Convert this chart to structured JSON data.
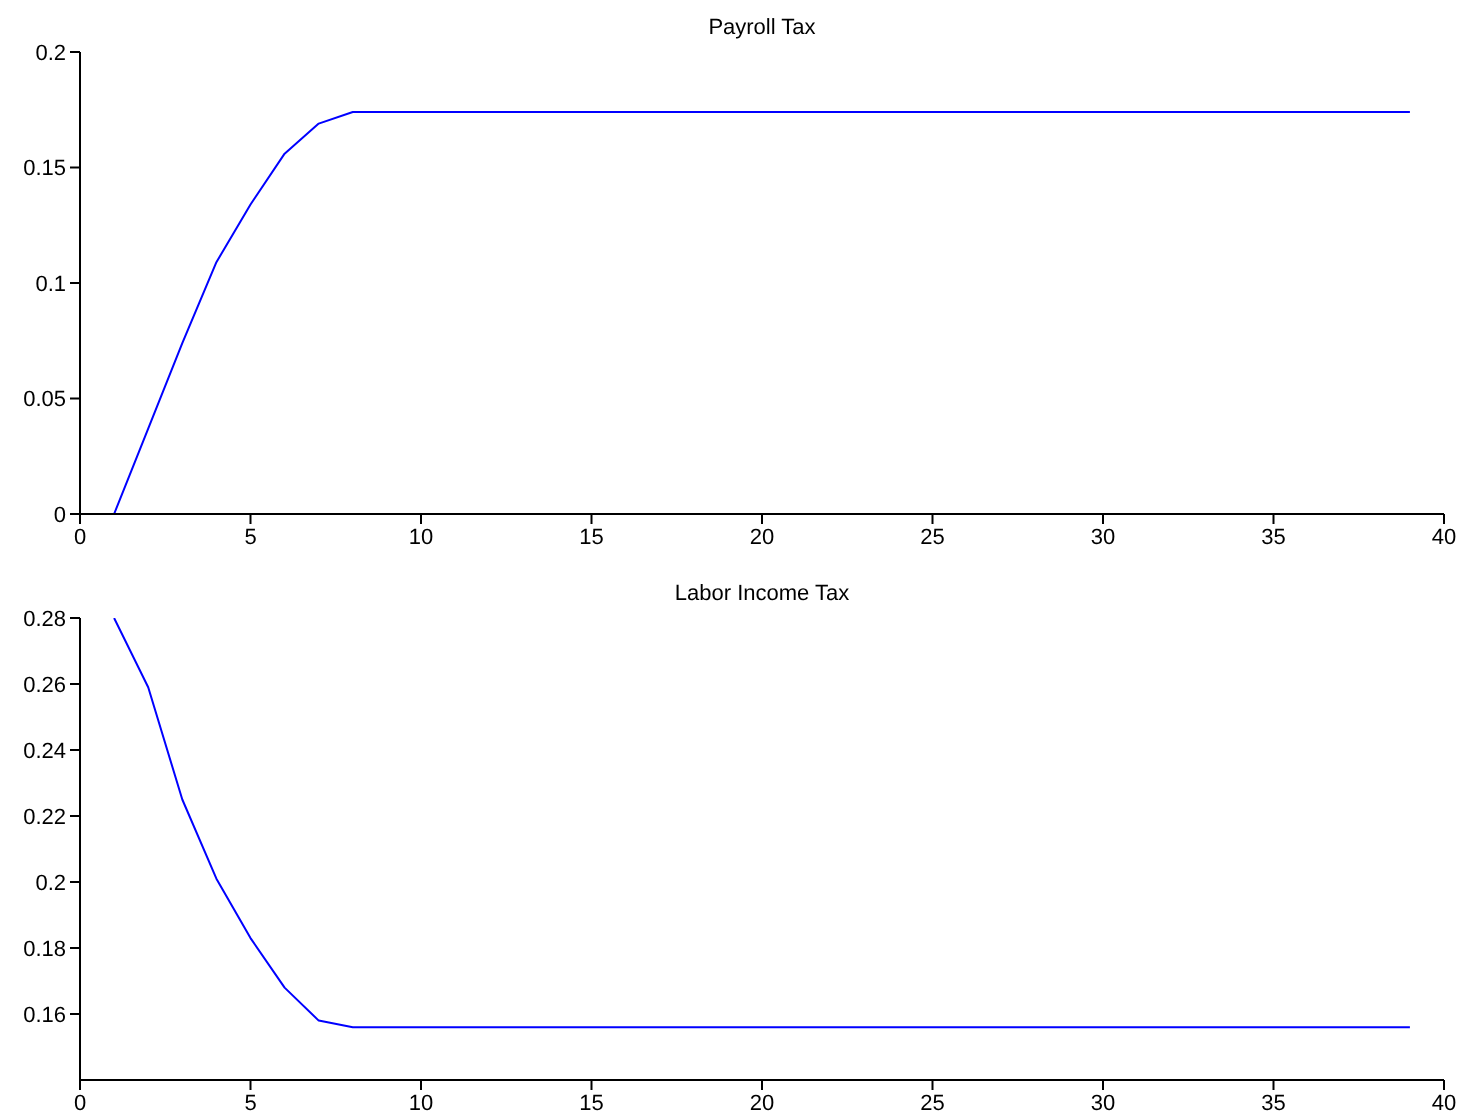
{
  "chart_data": [
    {
      "type": "line",
      "title": "Payroll Tax",
      "color": "#0000ff",
      "x": [
        1,
        2,
        3,
        4,
        5,
        6,
        7,
        8,
        9,
        10,
        11,
        12,
        13,
        14,
        15,
        16,
        17,
        18,
        19,
        20,
        21,
        22,
        23,
        24,
        25,
        26,
        27,
        28,
        29,
        30,
        31,
        32,
        33,
        34,
        35,
        36,
        37,
        38,
        39
      ],
      "values": [
        0,
        0.037,
        0.074,
        0.109,
        0.134,
        0.156,
        0.169,
        0.174,
        0.174,
        0.174,
        0.174,
        0.174,
        0.174,
        0.174,
        0.174,
        0.174,
        0.174,
        0.174,
        0.174,
        0.174,
        0.174,
        0.174,
        0.174,
        0.174,
        0.174,
        0.174,
        0.174,
        0.174,
        0.174,
        0.174,
        0.174,
        0.174,
        0.174,
        0.174,
        0.174,
        0.174,
        0.174,
        0.174,
        0.174
      ],
      "xlim": [
        0,
        40
      ],
      "xticks": [
        0,
        5,
        10,
        15,
        20,
        25,
        30,
        35,
        40
      ],
      "ylim": [
        0,
        0.2
      ],
      "yticks": [
        0,
        0.05,
        0.1,
        0.15,
        0.2
      ]
    },
    {
      "type": "line",
      "title": "Labor Income Tax",
      "color": "#0000ff",
      "x": [
        1,
        2,
        3,
        4,
        5,
        6,
        7,
        8,
        9,
        10,
        11,
        12,
        13,
        14,
        15,
        16,
        17,
        18,
        19,
        20,
        21,
        22,
        23,
        24,
        25,
        26,
        27,
        28,
        29,
        30,
        31,
        32,
        33,
        34,
        35,
        36,
        37,
        38,
        39
      ],
      "values": [
        0.28,
        0.259,
        0.225,
        0.201,
        0.183,
        0.168,
        0.158,
        0.156,
        0.156,
        0.156,
        0.156,
        0.156,
        0.156,
        0.156,
        0.156,
        0.156,
        0.156,
        0.156,
        0.156,
        0.156,
        0.156,
        0.156,
        0.156,
        0.156,
        0.156,
        0.156,
        0.156,
        0.156,
        0.156,
        0.156,
        0.156,
        0.156,
        0.156,
        0.156,
        0.156,
        0.156,
        0.156,
        0.156,
        0.156
      ],
      "xlim": [
        0,
        40
      ],
      "xticks": [
        0,
        5,
        10,
        15,
        20,
        25,
        30,
        35,
        40
      ],
      "ylim": [
        0.14,
        0.28
      ],
      "yticks": [
        0.16,
        0.18,
        0.2,
        0.22,
        0.24,
        0.26,
        0.28
      ]
    }
  ]
}
